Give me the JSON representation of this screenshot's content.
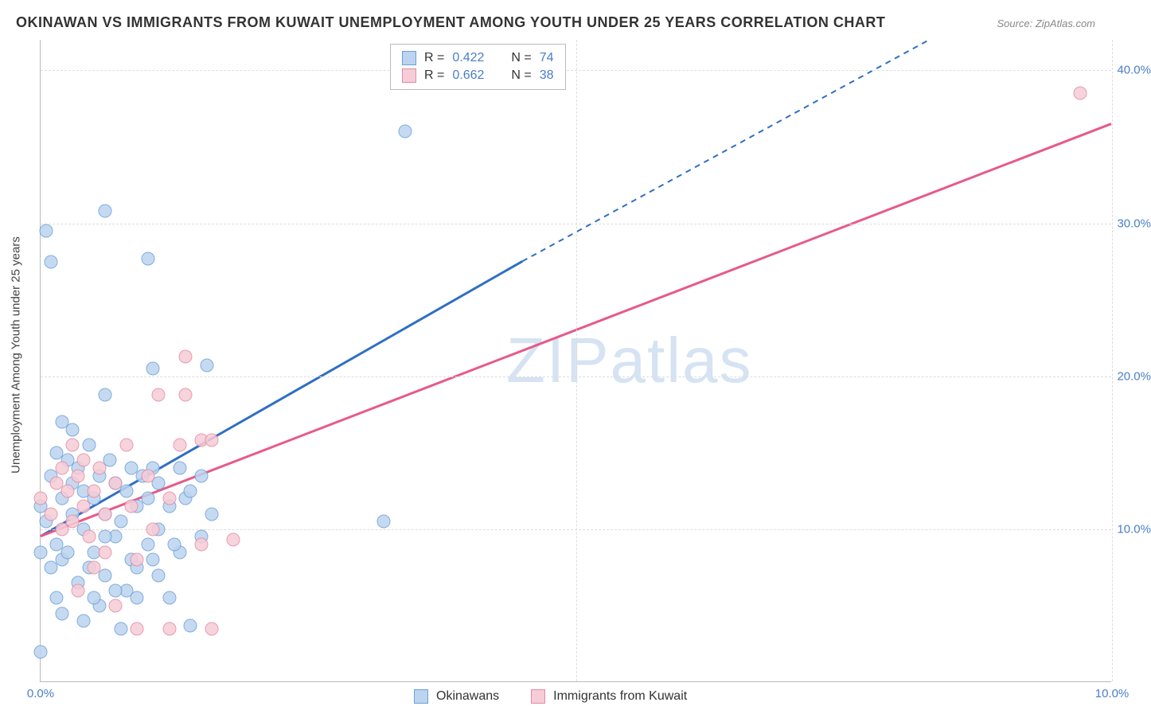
{
  "title": "OKINAWAN VS IMMIGRANTS FROM KUWAIT UNEMPLOYMENT AMONG YOUTH UNDER 25 YEARS CORRELATION CHART",
  "source": "Source: ZipAtlas.com",
  "ylabel": "Unemployment Among Youth under 25 years",
  "watermark_a": "ZIP",
  "watermark_b": "atlas",
  "chart": {
    "type": "scatter",
    "background_color": "#ffffff",
    "grid_color": "#dddddd",
    "axis_color": "#bbbbbb",
    "tick_label_color": "#4a7ec9",
    "text_color": "#333333",
    "xlim": [
      0,
      10
    ],
    "ylim": [
      0,
      42
    ],
    "xticks": [
      0,
      5,
      10
    ],
    "xtick_labels": [
      "0.0%",
      "",
      "10.0%"
    ],
    "yticks": [
      10,
      20,
      30,
      40
    ],
    "ytick_labels": [
      "10.0%",
      "20.0%",
      "30.0%",
      "40.0%"
    ],
    "marker_size": 17,
    "series": [
      {
        "name": "Okinawans",
        "fill_color": "#bcd4ef",
        "stroke_color": "#6b9fd6",
        "line_color": "#2f6fc4",
        "R": "0.422",
        "N": "74",
        "trend": {
          "x1": 0,
          "y1": 9.5,
          "x2": 4.5,
          "y2": 27.5,
          "x2_dash": 8.3,
          "y2_dash": 42
        },
        "points": [
          [
            0.0,
            11.5
          ],
          [
            0.05,
            29.5
          ],
          [
            0.1,
            13.5
          ],
          [
            0.1,
            27.5
          ],
          [
            0.15,
            15.0
          ],
          [
            0.15,
            9.0
          ],
          [
            0.2,
            17.0
          ],
          [
            0.2,
            12.0
          ],
          [
            0.2,
            8.0
          ],
          [
            0.25,
            14.5
          ],
          [
            0.3,
            16.5
          ],
          [
            0.3,
            13.0
          ],
          [
            0.3,
            11.0
          ],
          [
            0.35,
            14.0
          ],
          [
            0.4,
            12.5
          ],
          [
            0.4,
            10.0
          ],
          [
            0.45,
            15.5
          ],
          [
            0.5,
            12.0
          ],
          [
            0.5,
            8.5
          ],
          [
            0.55,
            13.5
          ],
          [
            0.6,
            30.8
          ],
          [
            0.6,
            18.8
          ],
          [
            0.6,
            11.0
          ],
          [
            0.6,
            7.0
          ],
          [
            0.65,
            14.5
          ],
          [
            0.7,
            13.0
          ],
          [
            0.7,
            9.5
          ],
          [
            0.75,
            3.5
          ],
          [
            0.8,
            12.5
          ],
          [
            0.8,
            6.0
          ],
          [
            0.85,
            14.0
          ],
          [
            0.85,
            8.0
          ],
          [
            0.9,
            11.5
          ],
          [
            0.9,
            5.5
          ],
          [
            0.95,
            13.5
          ],
          [
            1.0,
            12.0
          ],
          [
            1.0,
            27.7
          ],
          [
            1.0,
            9.0
          ],
          [
            1.05,
            20.5
          ],
          [
            1.05,
            8.0
          ],
          [
            1.1,
            13.0
          ],
          [
            1.1,
            7.0
          ],
          [
            1.2,
            11.5
          ],
          [
            1.2,
            5.5
          ],
          [
            1.3,
            14.0
          ],
          [
            1.3,
            8.5
          ],
          [
            1.35,
            12.0
          ],
          [
            0.0,
            2.0
          ],
          [
            1.4,
            3.7
          ],
          [
            1.5,
            13.5
          ],
          [
            1.5,
            9.5
          ],
          [
            1.6,
            11.0
          ],
          [
            3.4,
            36.0
          ],
          [
            3.2,
            10.5
          ],
          [
            0.15,
            5.5
          ],
          [
            0.35,
            6.5
          ],
          [
            0.45,
            7.5
          ],
          [
            0.55,
            5.0
          ],
          [
            0.7,
            6.0
          ],
          [
            0.2,
            4.5
          ],
          [
            0.4,
            4.0
          ],
          [
            0.5,
            5.5
          ],
          [
            0.1,
            7.5
          ],
          [
            0.25,
            8.5
          ],
          [
            0.0,
            8.5
          ],
          [
            0.05,
            10.5
          ],
          [
            0.6,
            9.5
          ],
          [
            0.75,
            10.5
          ],
          [
            0.9,
            7.5
          ],
          [
            1.1,
            10.0
          ],
          [
            1.25,
            9.0
          ],
          [
            1.4,
            12.5
          ],
          [
            1.55,
            20.7
          ],
          [
            1.05,
            14.0
          ]
        ]
      },
      {
        "name": "Immigrants from Kuwait",
        "fill_color": "#f6ccd7",
        "stroke_color": "#e38ba3",
        "line_color": "#e75a87",
        "R": "0.662",
        "N": "38",
        "trend": {
          "x1": 0,
          "y1": 9.5,
          "x2": 10,
          "y2": 36.5
        },
        "points": [
          [
            0.0,
            12.0
          ],
          [
            0.1,
            11.0
          ],
          [
            0.15,
            13.0
          ],
          [
            0.2,
            10.0
          ],
          [
            0.2,
            14.0
          ],
          [
            0.25,
            12.5
          ],
          [
            0.3,
            15.5
          ],
          [
            0.3,
            10.5
          ],
          [
            0.35,
            13.5
          ],
          [
            0.4,
            11.5
          ],
          [
            0.4,
            14.5
          ],
          [
            0.45,
            9.5
          ],
          [
            0.5,
            12.5
          ],
          [
            0.5,
            7.5
          ],
          [
            0.55,
            14.0
          ],
          [
            0.6,
            11.0
          ],
          [
            0.6,
            8.5
          ],
          [
            0.7,
            13.0
          ],
          [
            0.7,
            5.0
          ],
          [
            0.8,
            15.5
          ],
          [
            0.85,
            11.5
          ],
          [
            0.9,
            8.0
          ],
          [
            0.9,
            3.5
          ],
          [
            1.0,
            13.5
          ],
          [
            1.05,
            10.0
          ],
          [
            1.1,
            18.8
          ],
          [
            1.2,
            12.0
          ],
          [
            1.2,
            3.5
          ],
          [
            1.3,
            15.5
          ],
          [
            1.35,
            21.3
          ],
          [
            1.35,
            18.8
          ],
          [
            1.5,
            9.0
          ],
          [
            1.5,
            15.8
          ],
          [
            1.6,
            3.5
          ],
          [
            1.8,
            9.3
          ],
          [
            1.6,
            15.8
          ],
          [
            0.35,
            6.0
          ],
          [
            9.7,
            38.5
          ]
        ]
      }
    ]
  },
  "legend_top": {
    "rows": [
      {
        "swatch_fill": "#bcd4ef",
        "swatch_stroke": "#6b9fd6",
        "r_label": "R =",
        "r_val": "0.422",
        "n_label": "N =",
        "n_val": "74"
      },
      {
        "swatch_fill": "#f6ccd7",
        "swatch_stroke": "#e38ba3",
        "r_label": "R =",
        "r_val": "0.662",
        "n_label": "N =",
        "n_val": "38"
      }
    ]
  },
  "legend_bottom": {
    "items": [
      {
        "swatch_fill": "#bcd4ef",
        "swatch_stroke": "#6b9fd6",
        "label": "Okinawans"
      },
      {
        "swatch_fill": "#f6ccd7",
        "swatch_stroke": "#e38ba3",
        "label": "Immigrants from Kuwait"
      }
    ]
  }
}
